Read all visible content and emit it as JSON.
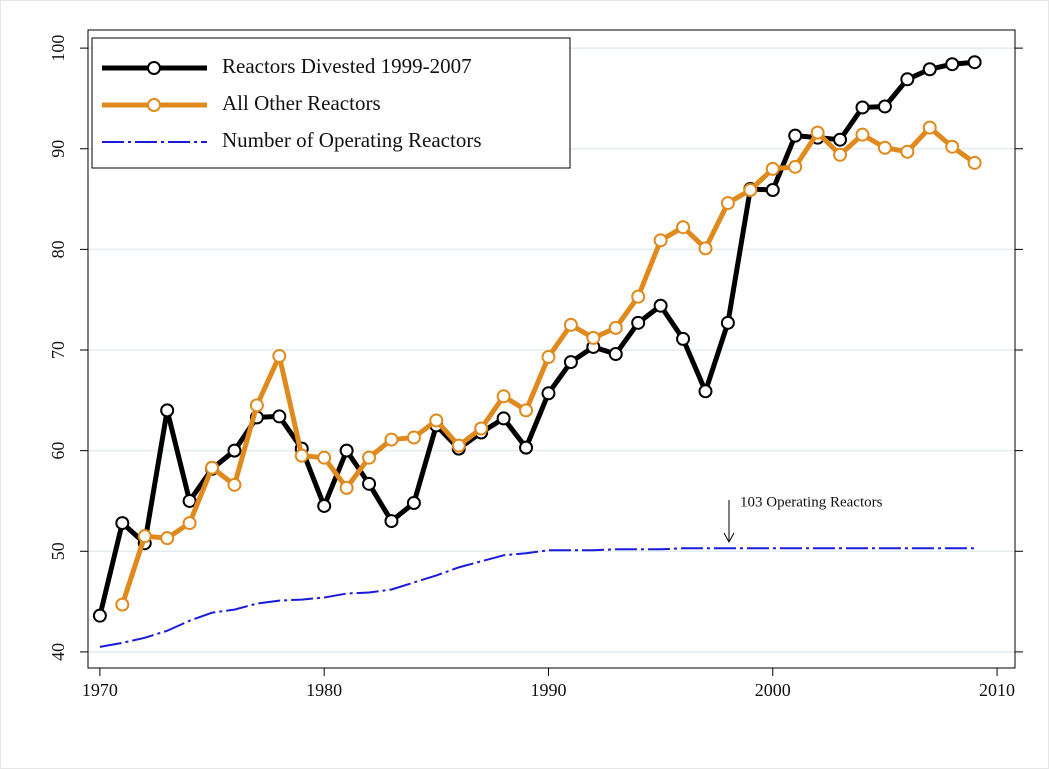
{
  "chart_data": {
    "type": "line",
    "x": [
      1970,
      1971,
      1972,
      1973,
      1974,
      1975,
      1976,
      1977,
      1978,
      1979,
      1980,
      1981,
      1982,
      1983,
      1984,
      1985,
      1986,
      1987,
      1988,
      1989,
      1990,
      1991,
      1992,
      1993,
      1994,
      1995,
      1996,
      1997,
      1998,
      1999,
      2000,
      2001,
      2002,
      2003,
      2004,
      2005,
      2006,
      2007,
      2008,
      2009
    ],
    "series": [
      {
        "name": "Reactors Divested 1999-2007",
        "color": "#000000",
        "marker": true,
        "dash": false,
        "values": [
          43.6,
          52.8,
          50.8,
          64.0,
          55.0,
          58.2,
          60.0,
          63.3,
          63.4,
          60.2,
          54.5,
          60.0,
          56.7,
          53.0,
          54.8,
          62.5,
          60.2,
          61.8,
          63.2,
          60.3,
          65.7,
          68.8,
          70.3,
          69.6,
          72.7,
          74.4,
          71.1,
          65.9,
          72.7,
          86.0,
          85.9,
          91.3,
          91.1,
          90.9,
          94.1,
          94.2,
          96.9,
          97.9,
          98.4,
          98.6
        ]
      },
      {
        "name": "All Other Reactors",
        "color": "#e08a1e",
        "marker": true,
        "dash": false,
        "values": [
          null,
          44.7,
          51.5,
          51.3,
          52.8,
          58.3,
          56.6,
          64.5,
          69.4,
          59.5,
          59.3,
          56.3,
          59.3,
          61.1,
          61.3,
          63.0,
          60.5,
          62.2,
          65.4,
          64.0,
          69.3,
          72.5,
          71.2,
          72.2,
          75.3,
          80.9,
          82.2,
          80.1,
          84.6,
          85.9,
          88.0,
          88.2,
          91.6,
          89.4,
          91.4,
          90.1,
          89.7,
          92.1,
          90.2,
          88.6
        ]
      },
      {
        "name": "Number of Operating Reactors",
        "color": "#1a1adb",
        "marker": false,
        "dash": true,
        "values": [
          40.5,
          40.9,
          41.4,
          42.1,
          43.1,
          43.9,
          44.2,
          44.8,
          45.1,
          45.2,
          45.4,
          45.8,
          45.9,
          46.2,
          46.9,
          47.6,
          48.4,
          49.0,
          49.6,
          49.8,
          50.1,
          50.1,
          50.1,
          50.2,
          50.2,
          50.2,
          50.3,
          50.3,
          50.3,
          50.3,
          50.3,
          50.3,
          50.3,
          50.3,
          50.3,
          50.3,
          50.3,
          50.3,
          50.3,
          50.3
        ]
      }
    ],
    "annotation": "103 Operating Reactors",
    "xlim": [
      1969.47,
      2010.8
    ],
    "xticks": [
      1970,
      1980,
      1990,
      2000,
      2010
    ],
    "ylim": [
      38.4,
      101.8
    ],
    "yticks": [
      40,
      50,
      60,
      70,
      80,
      90,
      100
    ],
    "grid": true,
    "legend": "top-left"
  }
}
